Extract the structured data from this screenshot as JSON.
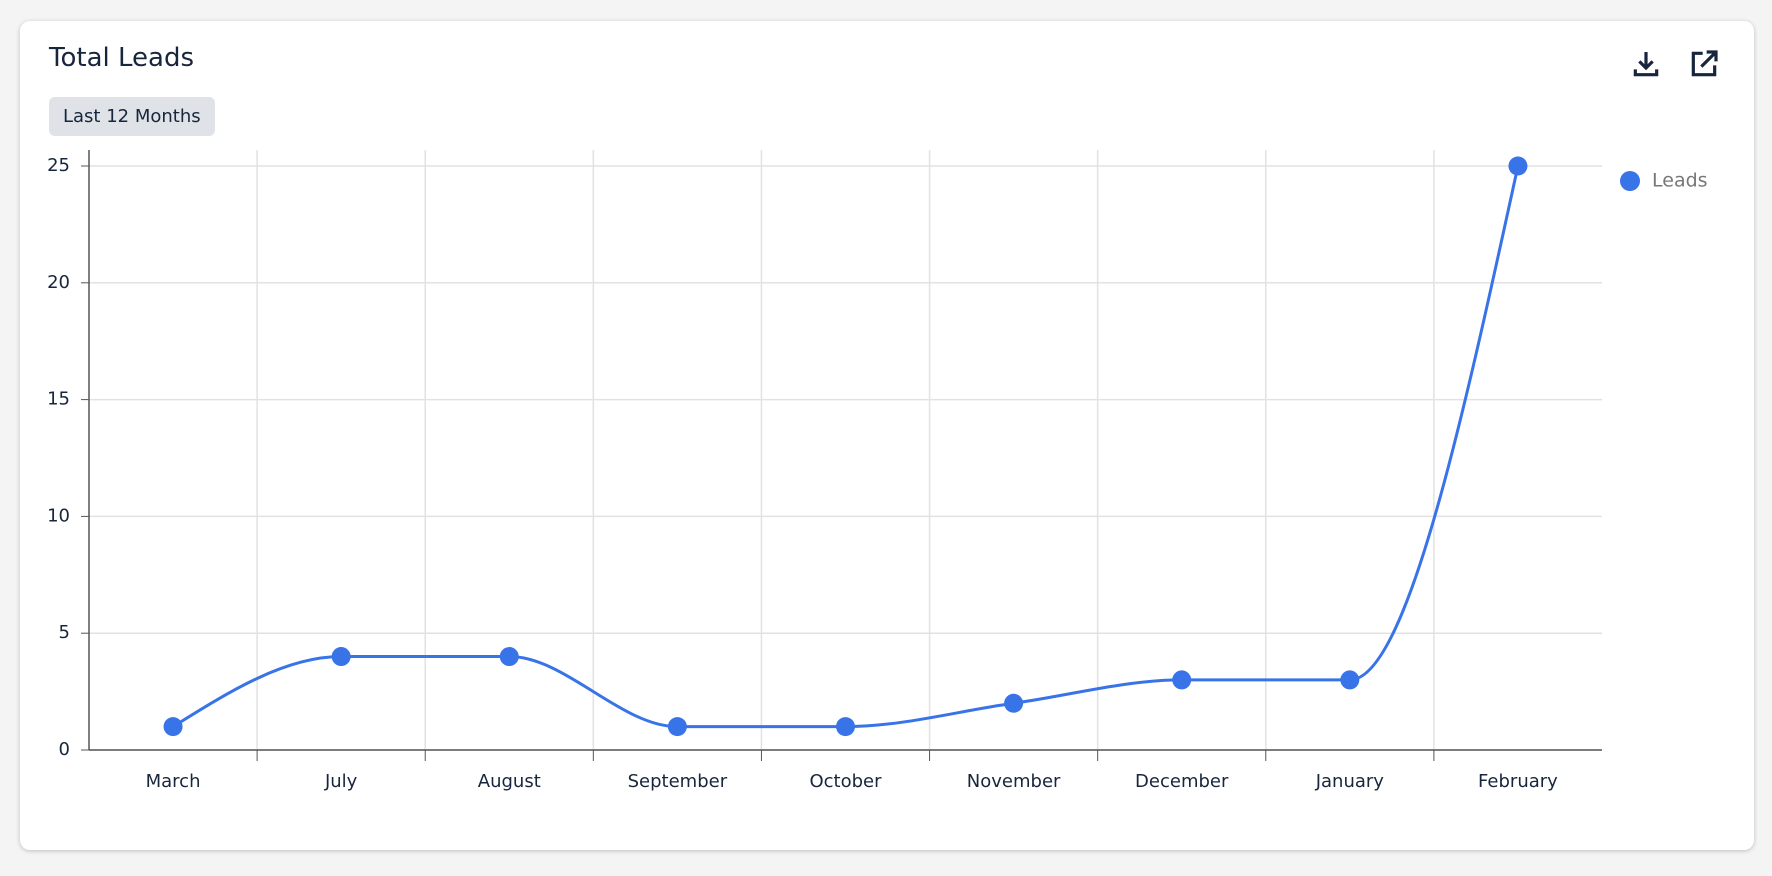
{
  "chart_data": {
    "type": "line",
    "title": "Total Leads",
    "badge": "Last 12 Months",
    "categories": [
      "March",
      "July",
      "August",
      "September",
      "October",
      "November",
      "December",
      "January",
      "February"
    ],
    "series": [
      {
        "name": "Leads",
        "color": "#3873e8",
        "values": [
          1,
          4,
          4,
          1,
          1,
          2,
          3,
          3,
          25
        ]
      }
    ],
    "ylim": [
      0,
      25
    ],
    "yticks": [
      0,
      5,
      10,
      15,
      20,
      25
    ],
    "grid": true,
    "legend": "top-right",
    "smooth": true
  }
}
